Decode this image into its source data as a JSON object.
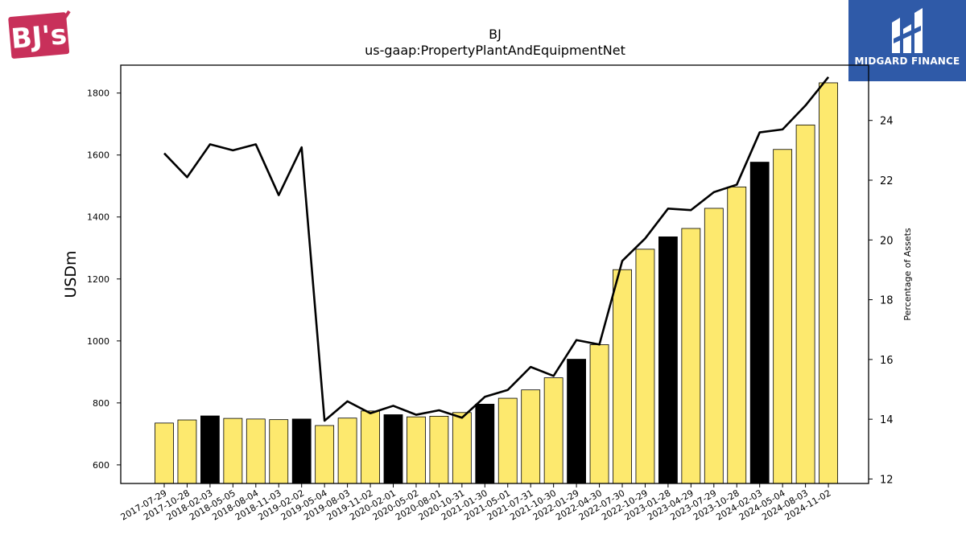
{
  "brand": {
    "left_logo_text": "BJ's",
    "right_logo_text": "MIDGARD FINANCE"
  },
  "colors": {
    "bar_regular": "#fde96e",
    "bar_fiscal_year_end": "#000000",
    "line": "#000000",
    "logo_left": "#c8305a",
    "logo_right_bg": "#2f5aa8"
  },
  "chart_data": {
    "type": "bar",
    "title": "BJ",
    "subtitle": "us-gaap:PropertyPlantAndEquipmentNet",
    "ylabel": "USDm",
    "y2label": "Percentage of Assets",
    "ylim": [
      540,
      1890
    ],
    "y2lim": [
      11.85,
      25.85
    ],
    "yticks": [
      600,
      800,
      1000,
      1200,
      1400,
      1600,
      1800
    ],
    "y2ticks": [
      12,
      14,
      16,
      18,
      20,
      22,
      24
    ],
    "categories": [
      "2017-07-29",
      "2017-10-28",
      "2018-02-03",
      "2018-05-05",
      "2018-08-04",
      "2018-11-03",
      "2019-02-02",
      "2019-05-04",
      "2019-08-03",
      "2019-11-02",
      "2020-02-01",
      "2020-05-02",
      "2020-08-01",
      "2020-10-31",
      "2021-01-30",
      "2021-05-01",
      "2021-07-31",
      "2021-10-30",
      "2022-01-29",
      "2022-04-30",
      "2022-07-30",
      "2022-10-29",
      "2023-01-28",
      "2023-04-29",
      "2023-07-29",
      "2023-10-28",
      "2024-02-03",
      "2024-05-04",
      "2024-08-03",
      "2024-11-02"
    ],
    "series": [
      {
        "type": "bar",
        "values": [
          735,
          745,
          758,
          750,
          748,
          746,
          748,
          727,
          751,
          774,
          762,
          755,
          757,
          769,
          796,
          815,
          842,
          881,
          941,
          988,
          1230,
          1296,
          1336,
          1363,
          1428,
          1497,
          1577,
          1618,
          1697,
          1833
        ],
        "fiscal_year_end": [
          false,
          false,
          true,
          false,
          false,
          false,
          true,
          false,
          false,
          false,
          true,
          false,
          false,
          false,
          true,
          false,
          false,
          false,
          true,
          false,
          false,
          false,
          true,
          false,
          false,
          false,
          true,
          false,
          false,
          false
        ]
      },
      {
        "type": "line",
        "axis": "right",
        "values": [
          22.9,
          22.1,
          23.2,
          23.0,
          23.2,
          21.5,
          23.1,
          13.95,
          14.6,
          14.2,
          14.45,
          14.15,
          14.3,
          14.05,
          14.75,
          14.98,
          15.75,
          15.45,
          16.65,
          16.5,
          19.3,
          20.05,
          21.05,
          21.0,
          21.6,
          21.85,
          23.6,
          23.7,
          24.5,
          25.45
        ]
      }
    ],
    "grid": false
  }
}
